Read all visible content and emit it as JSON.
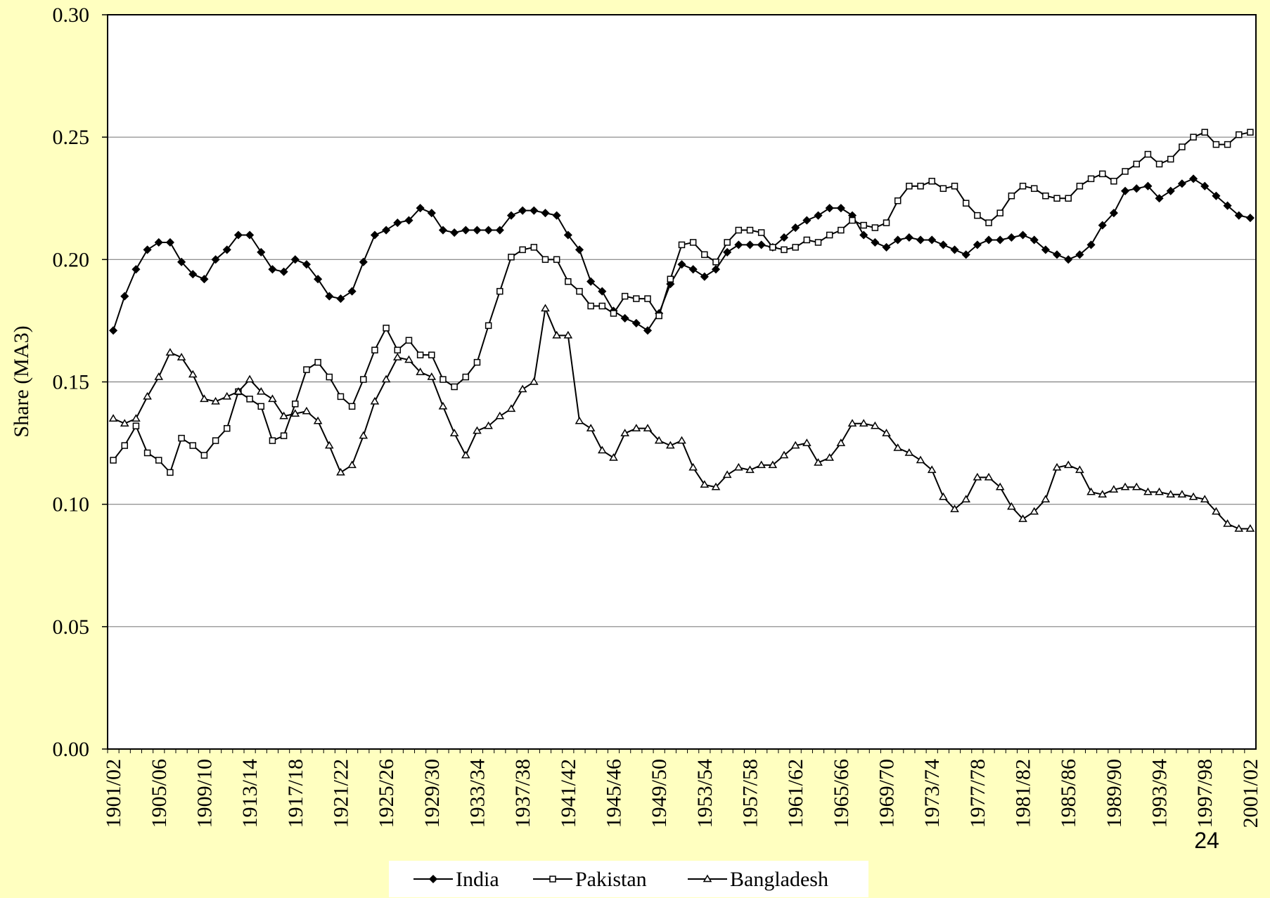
{
  "chart_data": {
    "type": "line",
    "y_label": "Share (MA3)",
    "categories": [
      "1901/02",
      null,
      null,
      null,
      "1905/06",
      null,
      null,
      null,
      "1909/10",
      null,
      null,
      null,
      "1913/14",
      null,
      null,
      null,
      "1917/18",
      null,
      null,
      null,
      "1921/22",
      null,
      null,
      null,
      "1925/26",
      null,
      null,
      null,
      "1929/30",
      null,
      null,
      null,
      "1933/34",
      null,
      null,
      null,
      "1937/38",
      null,
      null,
      null,
      "1941/42",
      null,
      null,
      null,
      "1945/46",
      null,
      null,
      null,
      "1949/50",
      null,
      null,
      null,
      "1953/54",
      null,
      null,
      null,
      "1957/58",
      null,
      null,
      null,
      "1961/62",
      null,
      null,
      null,
      "1965/66",
      null,
      null,
      null,
      "1969/70",
      null,
      null,
      null,
      "1973/74",
      null,
      null,
      null,
      "1977/78",
      null,
      null,
      null,
      "1981/82",
      null,
      null,
      null,
      "1985/86",
      null,
      null,
      null,
      "1989/90",
      null,
      null,
      null,
      "1993/94",
      null,
      null,
      null,
      "1997/98",
      null,
      null,
      null,
      "2001/02"
    ],
    "series": [
      {
        "name": "India",
        "color": "#000000",
        "marker": "diamond",
        "values": [
          0.171,
          0.185,
          0.196,
          0.204,
          0.207,
          0.207,
          0.199,
          0.194,
          0.192,
          0.2,
          0.204,
          0.21,
          0.21,
          0.203,
          0.196,
          0.195,
          0.2,
          0.198,
          0.192,
          0.185,
          0.184,
          0.187,
          0.199,
          0.21,
          0.212,
          0.215,
          0.216,
          0.221,
          0.219,
          0.212,
          0.211,
          0.212,
          0.212,
          0.212,
          0.212,
          0.218,
          0.22,
          0.22,
          0.219,
          0.218,
          0.21,
          0.204,
          0.191,
          0.187,
          0.179,
          0.176,
          0.174,
          0.171,
          0.178,
          0.19,
          0.198,
          0.196,
          0.193,
          0.196,
          0.203,
          0.206,
          0.206,
          0.206,
          0.205,
          0.209,
          0.213,
          0.216,
          0.218,
          0.221,
          0.221,
          0.218,
          0.21,
          0.207,
          0.205,
          0.208,
          0.209,
          0.208,
          0.208,
          0.206,
          0.204,
          0.202,
          0.206,
          0.208,
          0.208,
          0.209,
          0.21,
          0.208,
          0.204,
          0.202,
          0.2,
          0.202,
          0.206,
          0.214,
          0.219,
          0.228,
          0.229,
          0.23,
          0.225,
          0.228,
          0.231,
          0.233,
          0.23,
          0.226,
          0.222,
          0.218,
          0.217
        ]
      },
      {
        "name": "Pakistan",
        "color": "#000000",
        "marker": "square",
        "values": [
          0.118,
          0.124,
          0.132,
          0.121,
          0.118,
          0.113,
          0.127,
          0.124,
          0.12,
          0.126,
          0.131,
          0.146,
          0.143,
          0.14,
          0.126,
          0.128,
          0.141,
          0.155,
          0.158,
          0.152,
          0.144,
          0.14,
          0.151,
          0.163,
          0.172,
          0.163,
          0.167,
          0.161,
          0.161,
          0.151,
          0.148,
          0.152,
          0.158,
          0.173,
          0.187,
          0.201,
          0.204,
          0.205,
          0.2,
          0.2,
          0.191,
          0.187,
          0.181,
          0.181,
          0.178,
          0.185,
          0.184,
          0.184,
          0.177,
          0.192,
          0.206,
          0.207,
          0.202,
          0.199,
          0.207,
          0.212,
          0.212,
          0.211,
          0.205,
          0.204,
          0.205,
          0.208,
          0.207,
          0.21,
          0.212,
          0.216,
          0.214,
          0.213,
          0.215,
          0.224,
          0.23,
          0.23,
          0.232,
          0.229,
          0.23,
          0.223,
          0.218,
          0.215,
          0.219,
          0.226,
          0.23,
          0.229,
          0.226,
          0.225,
          0.225,
          0.23,
          0.233,
          0.235,
          0.232,
          0.236,
          0.239,
          0.243,
          0.239,
          0.241,
          0.246,
          0.25,
          0.252,
          0.247,
          0.247,
          0.251,
          0.252
        ]
      },
      {
        "name": "Bangladesh",
        "color": "#000000",
        "marker": "triangle",
        "values": [
          0.135,
          0.133,
          0.135,
          0.144,
          0.152,
          0.162,
          0.16,
          0.153,
          0.143,
          0.142,
          0.144,
          0.146,
          0.151,
          0.146,
          0.143,
          0.136,
          0.137,
          0.138,
          0.134,
          0.124,
          0.113,
          0.116,
          0.128,
          0.142,
          0.151,
          0.16,
          0.159,
          0.154,
          0.152,
          0.14,
          0.129,
          0.12,
          0.13,
          0.132,
          0.136,
          0.139,
          0.147,
          0.15,
          0.18,
          0.169,
          0.169,
          0.134,
          0.131,
          0.122,
          0.119,
          0.129,
          0.131,
          0.131,
          0.126,
          0.124,
          0.126,
          0.115,
          0.108,
          0.107,
          0.112,
          0.115,
          0.114,
          0.116,
          0.116,
          0.12,
          0.124,
          0.125,
          0.117,
          0.119,
          0.125,
          0.133,
          0.133,
          0.132,
          0.129,
          0.123,
          0.121,
          0.118,
          0.114,
          0.103,
          0.098,
          0.102,
          0.111,
          0.111,
          0.107,
          0.099,
          0.094,
          0.097,
          0.102,
          0.115,
          0.116,
          0.114,
          0.105,
          0.104,
          0.106,
          0.107,
          0.107,
          0.105,
          0.105,
          0.104,
          0.104,
          0.103,
          0.102,
          0.097,
          0.092,
          0.09,
          0.09
        ]
      }
    ],
    "ylim": [
      0,
      0.3
    ],
    "yticks": [
      {
        "value": 0,
        "label": "0.00"
      },
      0.05,
      {
        "value": 0.1,
        "label": "0.10"
      },
      0.15,
      {
        "value": 0.2,
        "label": "0.20"
      },
      0.25,
      {
        "value": 0.3,
        "label": "0.30"
      }
    ],
    "grid": true,
    "legend": "bottom"
  },
  "page_number": "24"
}
